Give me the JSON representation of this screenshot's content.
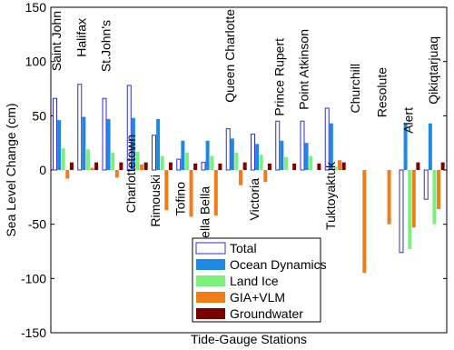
{
  "chart_data": {
    "type": "bar",
    "ylabel": "Sea Level Change (cm)",
    "xlabel": "Tide-Gauge Stations",
    "categories": [
      "Saint John",
      "Halifax",
      "St.John's",
      "Charlottetown",
      "Rimouski",
      "Tofino",
      "Bella Bella",
      "Queen Charlotte",
      "Victoria",
      "Prince Rupert",
      "Point Atkinson",
      "Tuktoyaktuk",
      "Churchill",
      "Resolute",
      "Alert",
      "Qikiqtarjuaq"
    ],
    "series": [
      {
        "name": "Total",
        "color": "#ffffff",
        "stroke": "#2f2fc8",
        "values": [
          66,
          79,
          66,
          78,
          32,
          10,
          7,
          38,
          33,
          45,
          45,
          57,
          0,
          0,
          -76,
          -27
        ]
      },
      {
        "name": "Ocean Dynamics",
        "color": "#1e88e5",
        "values": [
          46,
          49,
          47,
          48,
          47,
          27,
          27,
          29,
          24,
          27,
          25,
          43,
          0,
          0,
          43,
          43
        ]
      },
      {
        "name": "Land Ice",
        "color": "#7cf07c",
        "values": [
          20,
          19,
          16,
          17,
          13,
          16,
          13,
          16,
          14,
          12,
          13,
          3,
          0,
          0,
          -73,
          -50
        ]
      },
      {
        "name": "GIA+VLM",
        "color": "#f07d1a",
        "values": [
          -8,
          2,
          -7,
          5,
          -37,
          -43,
          -42,
          -14,
          -11,
          0,
          0,
          9,
          -95,
          -50,
          -53,
          -36
        ]
      },
      {
        "name": "Groundwater",
        "color": "#7a0000",
        "values": [
          7,
          7,
          7,
          7,
          7,
          6,
          6,
          7,
          6,
          6,
          6,
          7,
          0,
          0,
          7,
          7
        ]
      }
    ],
    "ylim": [
      -150,
      150
    ],
    "yticks": [
      -150,
      -100,
      -50,
      0,
      50,
      100,
      150
    ]
  }
}
